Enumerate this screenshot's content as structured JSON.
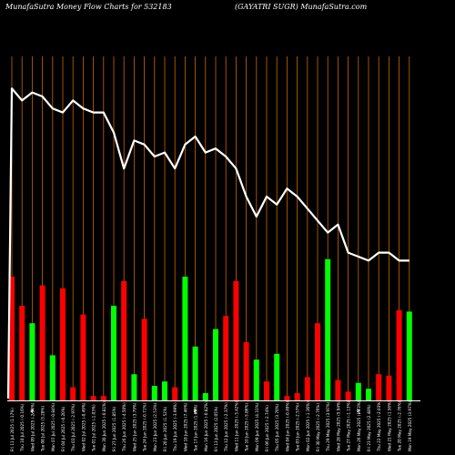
{
  "chart_data": {
    "type": "bar",
    "title_left": "MunafaSutra  Money Flow  Charts for 532183",
    "title_right": "(GAYATRI SUGR) MunafaSutra.com",
    "currency_marks": [
      "₹",
      "₹",
      "₹"
    ],
    "categories": [
      "Fri 11 Jul 2025 (1.17%)",
      "Thu 10 Jul 2025 (-0.16%)",
      "Wed 09 Jul 2025 (-2.94%)",
      "Tue 08 Jul 2025 (3.28%)",
      "Mon 07 Jul 2025 (-0.84%)",
      "Fri 04 Jul 2025 (-0.20%)",
      "Thu 03 Jul 2025 (-2.97%)",
      "Wed 02 Jul 2025 (-0.49%)",
      "Tue 01 Jul 2025 (-1.03%)",
      "Mon 30 Jun 2025 (-0.81%)",
      "Fri 27 Jun 2025 (1.85%)",
      "Thu 26 Jun 2025 (-4.50%)",
      "Wed 25 Jun 2025 (3.79%)",
      "Tue 24 Jun 2025 (-0.71%)",
      "Mon 23 Jun 2025 (2.53%)",
      "Fri 20 Jun 2025 (1.52%)",
      "Thu 19 Jun 2025 (-3.99%)",
      "Wed 18 Jun 2025 (7.46%)",
      "Tue 17 Jun 2025 (1.69%)",
      "Mon 16 Jun 2025 (-0.82%)",
      "Fri 13 Jun 2025 (2.05%)",
      "Thu 12 Jun 2025 (-2.37%)",
      "Wed 11 Jun 2025 (-3.42%)",
      "Tue 10 Jun 2025 (-5.86%)",
      "Mon 09 Jun 2025 (4.31%)",
      "Fri 06 Jun 2025 (-2.74%)",
      "Thu 05 Jun 2025 (3.70%)",
      "Wed 04 Jun 2025 (-0.49%)",
      "Tue 03 Jun 2025 (-2.57%)",
      "Mon 02 Jun 2025 (-1.36%)",
      "Fri 30 May 2025 (-2.76%)",
      "Thu 29 May 2025 (3.97%)",
      "Wed 28 May 2025 (5.94%)",
      "Tue 27 May 2025 (-1.13%)",
      "Mon 26 May 2025 (1.73%)",
      "Fri 23 May 2025 (2.48%)",
      "Thu 22 May 2025 (-2.03%)",
      "Wed 21 May 2025 (1.56%)",
      "Tue 20 May 2025 (-2.76%)",
      "Mon 19 May 2025 (3.97%)"
    ],
    "bar_values": [
      85,
      65,
      53,
      79,
      31,
      77,
      9,
      59,
      3,
      3,
      65,
      82,
      18,
      56,
      10,
      13,
      9,
      85,
      37,
      5,
      49,
      58,
      82,
      40,
      28,
      13,
      32,
      3,
      5,
      16,
      53,
      97,
      14,
      6,
      12,
      8,
      18,
      17,
      62,
      61
    ],
    "bar_colors": [
      "red",
      "red",
      "lime",
      "red",
      "lime",
      "red",
      "red",
      "red",
      "red",
      "red",
      "lime",
      "red",
      "lime",
      "red",
      "lime",
      "lime",
      "red",
      "lime",
      "lime",
      "lime",
      "lime",
      "red",
      "red",
      "red",
      "lime",
      "red",
      "lime",
      "red",
      "red",
      "red",
      "red",
      "lime",
      "red",
      "red",
      "lime",
      "lime",
      "red",
      "red",
      "red",
      "lime"
    ],
    "line_values": [
      92,
      89,
      91,
      90,
      87,
      86,
      89,
      87,
      86,
      86,
      81,
      72,
      79,
      78,
      75,
      76,
      72,
      78,
      80,
      76,
      77,
      75,
      72,
      65,
      60,
      65,
      63,
      67,
      65,
      62,
      59,
      56,
      58,
      51,
      50,
      49,
      51,
      51,
      49,
      49
    ],
    "colors": {
      "background": "#000000",
      "grid": "#cc6600",
      "line": "#ffffff",
      "up": "#00ff00",
      "down": "#ff0000",
      "axis": "#ffffff"
    }
  }
}
